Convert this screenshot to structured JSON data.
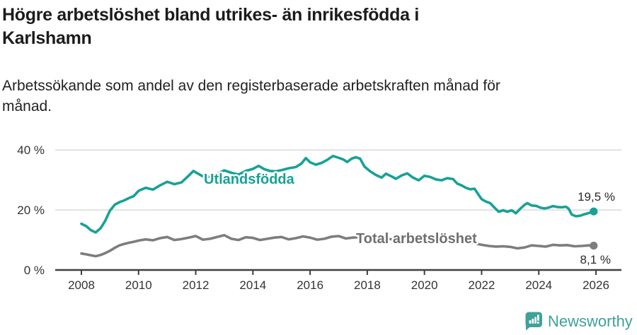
{
  "header": {
    "title_lines": [
      "Högre arbetslöshet bland utrikes- än inrikesfödda i",
      "Karlshamn"
    ],
    "subtitle_lines": [
      "Arbetssökande som andel av den registerbaserade arbetskraften månad för",
      "månad."
    ]
  },
  "footer": {
    "brand": "Newsworthy",
    "logo_icon": "bar-chart-speech-bubble-icon",
    "brand_color": "#3fa19a"
  },
  "colors": {
    "accent_teal": "#16a296",
    "series_gray": "#7d7d7d",
    "axis": "#3f3f3f",
    "gridline": "#dadada",
    "tick_text": "#333333",
    "annotation_text": "#2a2a2a"
  },
  "chart_data": {
    "type": "line",
    "title": "Högre arbetslöshet bland utrikes- än inrikesfödda i Karlshamn",
    "subtitle": "Arbetssökande som andel av den registerbaserade arbetskraften månad för månad.",
    "xlabel": "",
    "ylabel": "",
    "x_unit": "decimal_year",
    "xlim": [
      2007.1,
      2026.9
    ],
    "ylim": [
      0,
      42
    ],
    "grid": "horizontal",
    "legend": "inline-labels",
    "xticks": [
      2008,
      2010,
      2012,
      2014,
      2016,
      2018,
      2020,
      2022,
      2024,
      2026
    ],
    "yticks": [
      {
        "value": 0,
        "label": "0 %"
      },
      {
        "value": 20,
        "label": "20 %"
      },
      {
        "value": 40,
        "label": "40 %"
      }
    ],
    "series": [
      {
        "name": "Utlandsfödda",
        "color": "#16a296",
        "end_label": "19,5 %",
        "end_value": 19.5,
        "points": [
          [
            2008.0,
            15.4
          ],
          [
            2008.17,
            14.6
          ],
          [
            2008.33,
            13.3
          ],
          [
            2008.5,
            12.5
          ],
          [
            2008.67,
            13.9
          ],
          [
            2008.83,
            16.3
          ],
          [
            2009.0,
            19.8
          ],
          [
            2009.17,
            21.8
          ],
          [
            2009.33,
            22.6
          ],
          [
            2009.5,
            23.2
          ],
          [
            2009.67,
            24.0
          ],
          [
            2009.83,
            24.6
          ],
          [
            2010.0,
            26.4
          ],
          [
            2010.25,
            27.4
          ],
          [
            2010.5,
            26.8
          ],
          [
            2010.75,
            28.2
          ],
          [
            2011.0,
            29.4
          ],
          [
            2011.25,
            28.6
          ],
          [
            2011.5,
            29.2
          ],
          [
            2011.75,
            31.4
          ],
          [
            2011.92,
            33.0
          ],
          [
            2012.1,
            32.0
          ],
          [
            2012.25,
            31.2
          ],
          [
            2012.5,
            31.0
          ],
          [
            2012.75,
            32.1
          ],
          [
            2013.0,
            33.2
          ],
          [
            2013.25,
            32.4
          ],
          [
            2013.5,
            31.8
          ],
          [
            2013.75,
            33.0
          ],
          [
            2014.0,
            33.7
          ],
          [
            2014.2,
            34.7
          ],
          [
            2014.4,
            33.6
          ],
          [
            2014.6,
            33.0
          ],
          [
            2014.8,
            32.9
          ],
          [
            2015.0,
            33.3
          ],
          [
            2015.25,
            33.9
          ],
          [
            2015.5,
            34.3
          ],
          [
            2015.7,
            35.5
          ],
          [
            2015.85,
            37.3
          ],
          [
            2016.0,
            35.9
          ],
          [
            2016.2,
            35.1
          ],
          [
            2016.4,
            35.7
          ],
          [
            2016.6,
            36.7
          ],
          [
            2016.8,
            38.0
          ],
          [
            2017.0,
            37.4
          ],
          [
            2017.15,
            36.9
          ],
          [
            2017.3,
            36.0
          ],
          [
            2017.45,
            37.1
          ],
          [
            2017.6,
            37.6
          ],
          [
            2017.75,
            37.1
          ],
          [
            2017.9,
            34.5
          ],
          [
            2018.1,
            32.9
          ],
          [
            2018.3,
            31.7
          ],
          [
            2018.5,
            30.8
          ],
          [
            2018.65,
            32.1
          ],
          [
            2018.85,
            31.2
          ],
          [
            2019.0,
            30.4
          ],
          [
            2019.2,
            31.5
          ],
          [
            2019.4,
            32.2
          ],
          [
            2019.6,
            30.8
          ],
          [
            2019.8,
            29.9
          ],
          [
            2020.0,
            31.4
          ],
          [
            2020.2,
            31.0
          ],
          [
            2020.4,
            30.2
          ],
          [
            2020.6,
            29.9
          ],
          [
            2020.8,
            30.6
          ],
          [
            2021.0,
            30.3
          ],
          [
            2021.15,
            28.8
          ],
          [
            2021.3,
            28.2
          ],
          [
            2021.45,
            27.4
          ],
          [
            2021.6,
            26.9
          ],
          [
            2021.75,
            27.1
          ],
          [
            2021.9,
            25.0
          ],
          [
            2022.0,
            23.6
          ],
          [
            2022.15,
            22.8
          ],
          [
            2022.3,
            22.3
          ],
          [
            2022.45,
            20.8
          ],
          [
            2022.6,
            19.4
          ],
          [
            2022.75,
            19.9
          ],
          [
            2022.9,
            19.4
          ],
          [
            2023.05,
            19.9
          ],
          [
            2023.2,
            18.9
          ],
          [
            2023.35,
            20.4
          ],
          [
            2023.5,
            21.7
          ],
          [
            2023.6,
            22.3
          ],
          [
            2023.75,
            21.5
          ],
          [
            2023.9,
            21.4
          ],
          [
            2024.05,
            20.8
          ],
          [
            2024.2,
            20.5
          ],
          [
            2024.35,
            20.8
          ],
          [
            2024.5,
            21.3
          ],
          [
            2024.65,
            21.0
          ],
          [
            2024.8,
            20.9
          ],
          [
            2024.95,
            21.1
          ],
          [
            2025.05,
            20.4
          ],
          [
            2025.15,
            18.5
          ],
          [
            2025.3,
            17.9
          ],
          [
            2025.45,
            18.1
          ],
          [
            2025.6,
            18.6
          ],
          [
            2025.75,
            19.0
          ],
          [
            2025.92,
            19.5
          ]
        ]
      },
      {
        "name": "Total arbetslöshet",
        "color": "#7d7d7d",
        "end_label": "8,1 %",
        "end_value": 8.1,
        "points": [
          [
            2008.0,
            5.5
          ],
          [
            2008.17,
            5.2
          ],
          [
            2008.33,
            4.9
          ],
          [
            2008.5,
            4.6
          ],
          [
            2008.67,
            5.0
          ],
          [
            2008.83,
            5.6
          ],
          [
            2009.0,
            6.4
          ],
          [
            2009.17,
            7.4
          ],
          [
            2009.33,
            8.2
          ],
          [
            2009.5,
            8.7
          ],
          [
            2009.67,
            9.1
          ],
          [
            2009.83,
            9.4
          ],
          [
            2010.0,
            9.8
          ],
          [
            2010.25,
            10.2
          ],
          [
            2010.5,
            9.9
          ],
          [
            2010.75,
            10.6
          ],
          [
            2011.0,
            11.0
          ],
          [
            2011.25,
            10.0
          ],
          [
            2011.5,
            10.3
          ],
          [
            2011.75,
            10.8
          ],
          [
            2012.0,
            11.3
          ],
          [
            2012.25,
            10.1
          ],
          [
            2012.5,
            10.4
          ],
          [
            2012.75,
            11.0
          ],
          [
            2013.0,
            11.6
          ],
          [
            2013.25,
            10.4
          ],
          [
            2013.5,
            10.0
          ],
          [
            2013.75,
            10.9
          ],
          [
            2014.0,
            10.7
          ],
          [
            2014.25,
            10.0
          ],
          [
            2014.5,
            10.4
          ],
          [
            2014.75,
            10.8
          ],
          [
            2015.0,
            11.0
          ],
          [
            2015.25,
            10.2
          ],
          [
            2015.5,
            10.6
          ],
          [
            2015.75,
            11.2
          ],
          [
            2016.0,
            10.8
          ],
          [
            2016.25,
            10.1
          ],
          [
            2016.5,
            10.4
          ],
          [
            2016.75,
            11.1
          ],
          [
            2017.0,
            11.3
          ],
          [
            2017.25,
            10.5
          ],
          [
            2017.5,
            10.8
          ],
          [
            2017.75,
            11.0
          ],
          [
            2018.0,
            10.5
          ],
          [
            2018.25,
            9.9
          ],
          [
            2018.5,
            10.2
          ],
          [
            2018.75,
            10.4
          ],
          [
            2019.0,
            9.9
          ],
          [
            2019.25,
            9.6
          ],
          [
            2019.5,
            9.9
          ],
          [
            2019.75,
            10.1
          ],
          [
            2020.0,
            10.0
          ],
          [
            2020.25,
            10.6
          ],
          [
            2020.5,
            10.9
          ],
          [
            2020.75,
            10.5
          ],
          [
            2021.0,
            10.2
          ],
          [
            2021.25,
            9.8
          ],
          [
            2021.5,
            9.4
          ],
          [
            2021.75,
            8.9
          ],
          [
            2022.0,
            8.4
          ],
          [
            2022.25,
            8.0
          ],
          [
            2022.5,
            7.8
          ],
          [
            2022.75,
            7.9
          ],
          [
            2023.0,
            7.7
          ],
          [
            2023.25,
            7.2
          ],
          [
            2023.5,
            7.5
          ],
          [
            2023.75,
            8.2
          ],
          [
            2024.0,
            8.0
          ],
          [
            2024.25,
            7.8
          ],
          [
            2024.5,
            8.4
          ],
          [
            2024.75,
            8.2
          ],
          [
            2025.0,
            8.3
          ],
          [
            2025.25,
            7.9
          ],
          [
            2025.5,
            8.0
          ],
          [
            2025.75,
            8.2
          ],
          [
            2025.92,
            8.1
          ]
        ]
      }
    ]
  }
}
